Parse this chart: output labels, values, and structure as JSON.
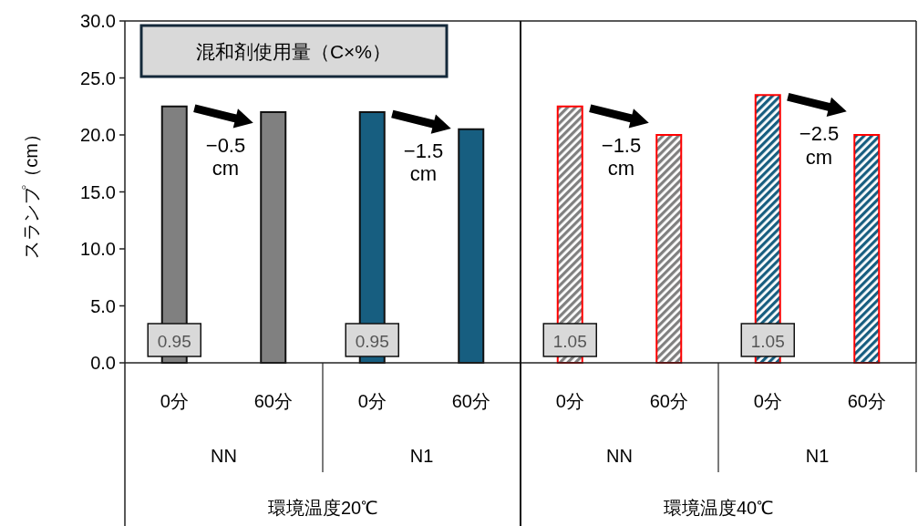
{
  "chart_data": {
    "type": "bar",
    "ylabel": "スランプ（cm）",
    "categories": [
      "0分",
      "60分",
      "0分",
      "60分",
      "0分",
      "60分",
      "0分",
      "60分"
    ],
    "values": [
      22.5,
      22.0,
      22.0,
      20.5,
      22.5,
      20.0,
      23.5,
      20.0
    ],
    "colors": [
      "#808080",
      "#808080",
      "#175e80",
      "#175e80",
      "#808080",
      "#808080",
      "#175e80",
      "#175e80"
    ],
    "ylim": [
      0,
      30
    ],
    "yticks": [
      {
        "value": 0,
        "label": "0.0"
      },
      {
        "value": 5,
        "label": "5.0"
      },
      {
        "value": 10,
        "label": "10.0"
      },
      {
        "value": 15,
        "label": "15.0"
      },
      {
        "value": 20,
        "label": "20.0"
      },
      {
        "value": 25,
        "label": "25.0"
      },
      {
        "value": 30,
        "label": "30.0"
      }
    ],
    "grid": false,
    "annotations": [
      "混和剤使用量（C×%）",
      "0.95",
      "0.95",
      "1.05",
      "1.05",
      "−0.5\ncm",
      "−1.5\ncm",
      "−1.5\ncm",
      "−2.5\ncm",
      "NN",
      "N1",
      "NN",
      "N1",
      "環境温度20℃",
      "環境温度40℃"
    ]
  }
}
